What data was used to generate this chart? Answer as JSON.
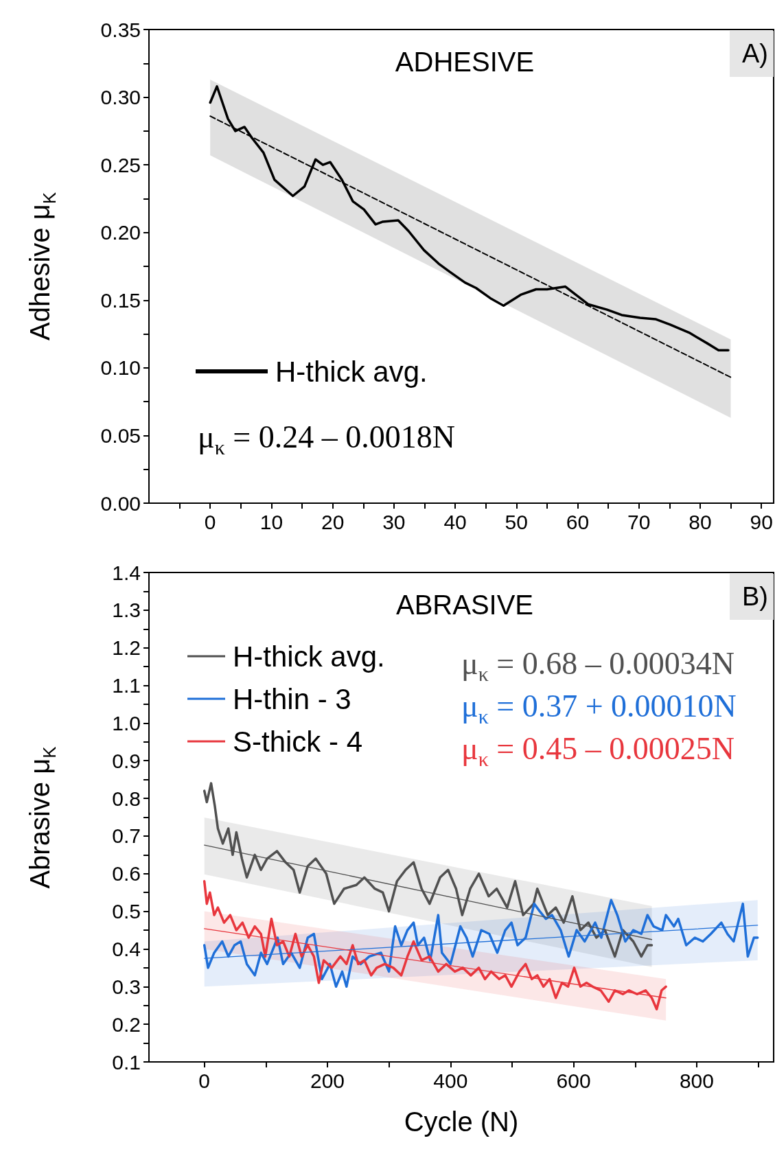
{
  "chart_data": [
    {
      "type": "line",
      "title": "ADHESIVE",
      "ylabel": "Adhesive μ$_{K}$",
      "annotations": [
        "A)",
        "μ$_{κ}$ = 0.24 – 0.0018N"
      ],
      "xlim": [
        -10,
        92
      ],
      "xticks": [
        {
          "value": -5,
          "label": null
        },
        0,
        {
          "value": 5,
          "label": null
        },
        10,
        {
          "value": 15,
          "label": null
        },
        20,
        {
          "value": 25,
          "label": null
        },
        30,
        {
          "value": 35,
          "label": null
        },
        40,
        {
          "value": 45,
          "label": null
        },
        50,
        {
          "value": 55,
          "label": null
        },
        60,
        {
          "value": 65,
          "label": null
        },
        70,
        {
          "value": 75,
          "label": null
        },
        80,
        {
          "value": 85,
          "label": null
        },
        90
      ],
      "ylim": [
        0,
        0.35
      ],
      "yticks": [
        {
          "value": 0,
          "label": "0.00"
        },
        {
          "value": 0.025,
          "label": null
        },
        {
          "value": 0.05,
          "label": "0.05"
        },
        {
          "value": 0.075,
          "label": null
        },
        {
          "value": 0.1,
          "label": "0.10"
        },
        {
          "value": 0.125,
          "label": null
        },
        {
          "value": 0.15,
          "label": "0.15"
        },
        {
          "value": 0.175,
          "label": null
        },
        {
          "value": 0.2,
          "label": "0.20"
        },
        {
          "value": 0.225,
          "label": null
        },
        {
          "value": 0.25,
          "label": "0.25"
        },
        {
          "value": 0.275,
          "label": null
        },
        {
          "value": 0.3,
          "label": "0.30"
        },
        {
          "value": 0.325,
          "label": null
        },
        {
          "value": 0.35,
          "label": "0.35"
        }
      ],
      "legend": "bottom left",
      "marker": "none",
      "series": [
        {
          "name": "H-thick avg.",
          "color": "#000000",
          "x": [
            0,
            1.1,
            2,
            2.9,
            4.1,
            5.6,
            6.8,
            8.7,
            10.5,
            13.5,
            15.4,
            17.2,
            18.4,
            19.6,
            21.5,
            23.3,
            25.1,
            27,
            28.2,
            30.7,
            32.4,
            34.9,
            37.3,
            39.1,
            41.6,
            43.4,
            45.9,
            47.9,
            50.7,
            53.2,
            55,
            58,
            61.7,
            64.8,
            67.2,
            70.2,
            72.7,
            75.1,
            78.2,
            81.2,
            83,
            84.6
          ],
          "values": [
            0.296,
            0.308,
            0.296,
            0.284,
            0.275,
            0.278,
            0.27,
            0.259,
            0.239,
            0.227,
            0.234,
            0.254,
            0.25,
            0.252,
            0.239,
            0.223,
            0.217,
            0.206,
            0.208,
            0.209,
            0.201,
            0.187,
            0.177,
            0.171,
            0.163,
            0.159,
            0.151,
            0.146,
            0.154,
            0.158,
            0.158,
            0.16,
            0.147,
            0.143,
            0.139,
            0.137,
            0.136,
            0.132,
            0.126,
            0.118,
            0.113,
            0.113
          ]
        },
        {
          "color": "#000000",
          "line_style": "dashed",
          "x": [
            0,
            85
          ],
          "values": [
            0.286,
            0.093
          ],
          "lower": [
            0.257,
            0.063
          ],
          "upper": [
            0.313,
            0.121
          ]
        }
      ]
    },
    {
      "type": "line",
      "title": "ABRASIVE",
      "xlabel": "Cycle (N)",
      "ylabel": "Abrasive μ$_{K}$",
      "annotations": [
        "B)",
        "μ$_{κ}$ = 0.68 – 0.00034N",
        "μ$_{κ}$ = 0.37 + 0.00010N",
        "μ$_{κ}$ = 0.45 – 0.00025N"
      ],
      "xlim": [
        -90,
        925
      ],
      "xticks": [
        0,
        {
          "value": 100,
          "label": null
        },
        200,
        {
          "value": 300,
          "label": null
        },
        400,
        {
          "value": 500,
          "label": null
        },
        600,
        {
          "value": 700,
          "label": null
        },
        800,
        {
          "value": 900,
          "label": null
        }
      ],
      "ylim": [
        0.1,
        1.4
      ],
      "yticks": [
        {
          "value": 0.1,
          "label": "0.1"
        },
        {
          "value": 0.15,
          "label": null
        },
        {
          "value": 0.2,
          "label": "0.2"
        },
        {
          "value": 0.25,
          "label": null
        },
        {
          "value": 0.3,
          "label": "0.3"
        },
        {
          "value": 0.35,
          "label": null
        },
        {
          "value": 0.4,
          "label": "0.4"
        },
        {
          "value": 0.45,
          "label": null
        },
        {
          "value": 0.5,
          "label": "0.5"
        },
        {
          "value": 0.55,
          "label": null
        },
        {
          "value": 0.6,
          "label": "0.6"
        },
        {
          "value": 0.65,
          "label": null
        },
        {
          "value": 0.7,
          "label": "0.7"
        },
        {
          "value": 0.75,
          "label": null
        },
        {
          "value": 0.8,
          "label": "0.8"
        },
        {
          "value": 0.85,
          "label": null
        },
        {
          "value": 0.9,
          "label": "0.9"
        },
        {
          "value": 0.95,
          "label": null
        },
        {
          "value": 1.0,
          "label": "1.0"
        },
        {
          "value": 1.05,
          "label": null
        },
        {
          "value": 1.1,
          "label": "1.1"
        },
        {
          "value": 1.15,
          "label": null
        },
        {
          "value": 1.2,
          "label": "1.2"
        },
        {
          "value": 1.25,
          "label": null
        },
        {
          "value": 1.3,
          "label": "1.3"
        },
        {
          "value": 1.35,
          "label": null
        },
        {
          "value": 1.4,
          "label": "1.4"
        }
      ],
      "legend": "top left",
      "marker": "none",
      "series": [
        {
          "name": "H-thick avg.",
          "color": "#505050",
          "x": [
            0,
            4,
            11,
            17,
            22,
            30,
            39,
            46,
            52,
            61,
            69,
            82,
            92,
            102,
            118,
            132,
            145,
            155,
            168,
            181,
            198,
            211,
            227,
            247,
            260,
            277,
            290,
            300,
            313,
            327,
            340,
            353,
            366,
            383,
            396,
            409,
            419,
            432,
            446,
            462,
            475,
            492,
            505,
            518,
            535,
            541,
            558,
            571,
            584,
            598,
            611,
            624,
            637,
            651,
            667,
            680,
            697,
            710,
            720,
            727
          ],
          "values": [
            0.82,
            0.79,
            0.84,
            0.78,
            0.72,
            0.68,
            0.72,
            0.65,
            0.71,
            0.64,
            0.59,
            0.65,
            0.61,
            0.64,
            0.66,
            0.63,
            0.61,
            0.55,
            0.62,
            0.64,
            0.6,
            0.52,
            0.56,
            0.57,
            0.59,
            0.56,
            0.55,
            0.5,
            0.58,
            0.61,
            0.63,
            0.56,
            0.52,
            0.59,
            0.61,
            0.56,
            0.49,
            0.56,
            0.6,
            0.54,
            0.56,
            0.51,
            0.58,
            0.49,
            0.52,
            0.56,
            0.49,
            0.51,
            0.47,
            0.54,
            0.45,
            0.47,
            0.43,
            0.45,
            0.38,
            0.45,
            0.42,
            0.38,
            0.41,
            0.41
          ]
        },
        {
          "name": "H-thin - 3",
          "color": "#1f6fd8",
          "x": [
            0,
            6,
            16,
            29,
            39,
            49,
            59,
            69,
            82,
            92,
            102,
            119,
            128,
            141,
            155,
            168,
            178,
            191,
            204,
            214,
            224,
            231,
            241,
            254,
            268,
            287,
            300,
            310,
            320,
            330,
            340,
            347,
            357,
            367,
            380,
            386,
            400,
            416,
            426,
            436,
            450,
            463,
            476,
            489,
            499,
            509,
            522,
            536,
            545,
            555,
            565,
            579,
            592,
            605,
            618,
            635,
            645,
            661,
            671,
            684,
            697,
            710,
            720,
            730,
            744,
            750,
            763,
            770,
            783,
            797,
            810,
            823,
            840,
            850,
            860,
            875,
            883,
            893,
            899
          ],
          "values": [
            0.41,
            0.35,
            0.39,
            0.42,
            0.38,
            0.41,
            0.42,
            0.36,
            0.33,
            0.39,
            0.36,
            0.43,
            0.36,
            0.39,
            0.35,
            0.43,
            0.44,
            0.32,
            0.36,
            0.3,
            0.34,
            0.3,
            0.38,
            0.36,
            0.38,
            0.39,
            0.34,
            0.46,
            0.41,
            0.45,
            0.47,
            0.41,
            0.43,
            0.37,
            0.49,
            0.39,
            0.36,
            0.46,
            0.43,
            0.38,
            0.45,
            0.44,
            0.39,
            0.45,
            0.47,
            0.41,
            0.43,
            0.52,
            0.5,
            0.48,
            0.49,
            0.45,
            0.38,
            0.45,
            0.42,
            0.47,
            0.43,
            0.53,
            0.49,
            0.42,
            0.45,
            0.44,
            0.49,
            0.46,
            0.45,
            0.49,
            0.46,
            0.48,
            0.41,
            0.43,
            0.42,
            0.44,
            0.47,
            0.44,
            0.42,
            0.52,
            0.38,
            0.43,
            0.43
          ]
        },
        {
          "name": "S-thick - 4",
          "color": "#e8363d",
          "x": [
            0,
            4,
            9,
            16,
            22,
            32,
            42,
            52,
            62,
            72,
            82,
            92,
            99,
            109,
            118,
            128,
            138,
            148,
            158,
            168,
            178,
            186,
            194,
            207,
            221,
            231,
            241,
            250,
            260,
            271,
            280,
            293,
            307,
            320,
            330,
            340,
            353,
            366,
            380,
            393,
            407,
            420,
            433,
            446,
            456,
            466,
            479,
            489,
            499,
            512,
            522,
            532,
            541,
            551,
            561,
            571,
            581,
            591,
            601,
            611,
            621,
            631,
            644,
            657,
            667,
            680,
            690,
            703,
            717,
            727,
            735,
            743,
            750
          ],
          "values": [
            0.58,
            0.52,
            0.55,
            0.49,
            0.51,
            0.47,
            0.49,
            0.45,
            0.47,
            0.43,
            0.46,
            0.44,
            0.38,
            0.48,
            0.41,
            0.42,
            0.38,
            0.44,
            0.38,
            0.41,
            0.38,
            0.31,
            0.37,
            0.35,
            0.38,
            0.36,
            0.41,
            0.36,
            0.37,
            0.33,
            0.35,
            0.36,
            0.35,
            0.33,
            0.38,
            0.42,
            0.37,
            0.38,
            0.34,
            0.36,
            0.34,
            0.35,
            0.33,
            0.35,
            0.32,
            0.34,
            0.32,
            0.33,
            0.3,
            0.34,
            0.36,
            0.32,
            0.33,
            0.3,
            0.32,
            0.27,
            0.31,
            0.3,
            0.35,
            0.3,
            0.31,
            0.3,
            0.29,
            0.26,
            0.29,
            0.28,
            0.29,
            0.28,
            0.29,
            0.27,
            0.24,
            0.29,
            0.3
          ]
        },
        {
          "color": "#505050",
          "x": [
            0,
            727
          ],
          "values": [
            0.676,
            0.425
          ],
          "lower": [
            0.598,
            0.352
          ],
          "upper": [
            0.749,
            0.514
          ]
        },
        {
          "color": "#1f6fd8",
          "x": [
            0,
            899
          ],
          "values": [
            0.375,
            0.463
          ],
          "lower": [
            0.3,
            0.37
          ],
          "upper": [
            0.42,
            0.53
          ]
        },
        {
          "color": "#e8363d",
          "x": [
            0,
            750
          ],
          "values": [
            0.454,
            0.27
          ],
          "lower": [
            0.4,
            0.21
          ],
          "upper": [
            0.5,
            0.32
          ]
        }
      ]
    }
  ]
}
